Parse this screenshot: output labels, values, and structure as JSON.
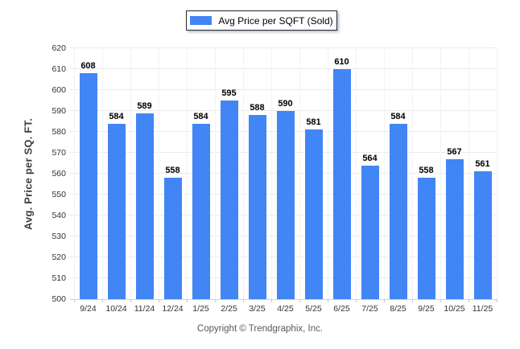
{
  "legend": {
    "label": "Avg Price per SQFT (Sold)",
    "swatch_color": "#4285f4"
  },
  "chart_data": {
    "type": "bar",
    "title": "",
    "categories": [
      "9/24",
      "10/24",
      "11/24",
      "12/24",
      "1/25",
      "2/25",
      "3/25",
      "4/25",
      "5/25",
      "6/25",
      "7/25",
      "8/25",
      "9/25",
      "10/25",
      "11/25"
    ],
    "values": [
      608,
      584,
      589,
      558,
      584,
      595,
      588,
      590,
      581,
      610,
      564,
      584,
      558,
      567,
      561
    ],
    "series_name": "Avg Price per SQFT (Sold)",
    "xlabel": "",
    "ylabel": "Avg. Price per SQ. FT.",
    "ylim": [
      500,
      620
    ],
    "ytick_step": 10,
    "grid": true,
    "legend_position": "top-center",
    "bar_color": "#4285f4",
    "value_labels": true
  },
  "footer": {
    "copyright": "Copyright © Trendgraphix, Inc."
  }
}
